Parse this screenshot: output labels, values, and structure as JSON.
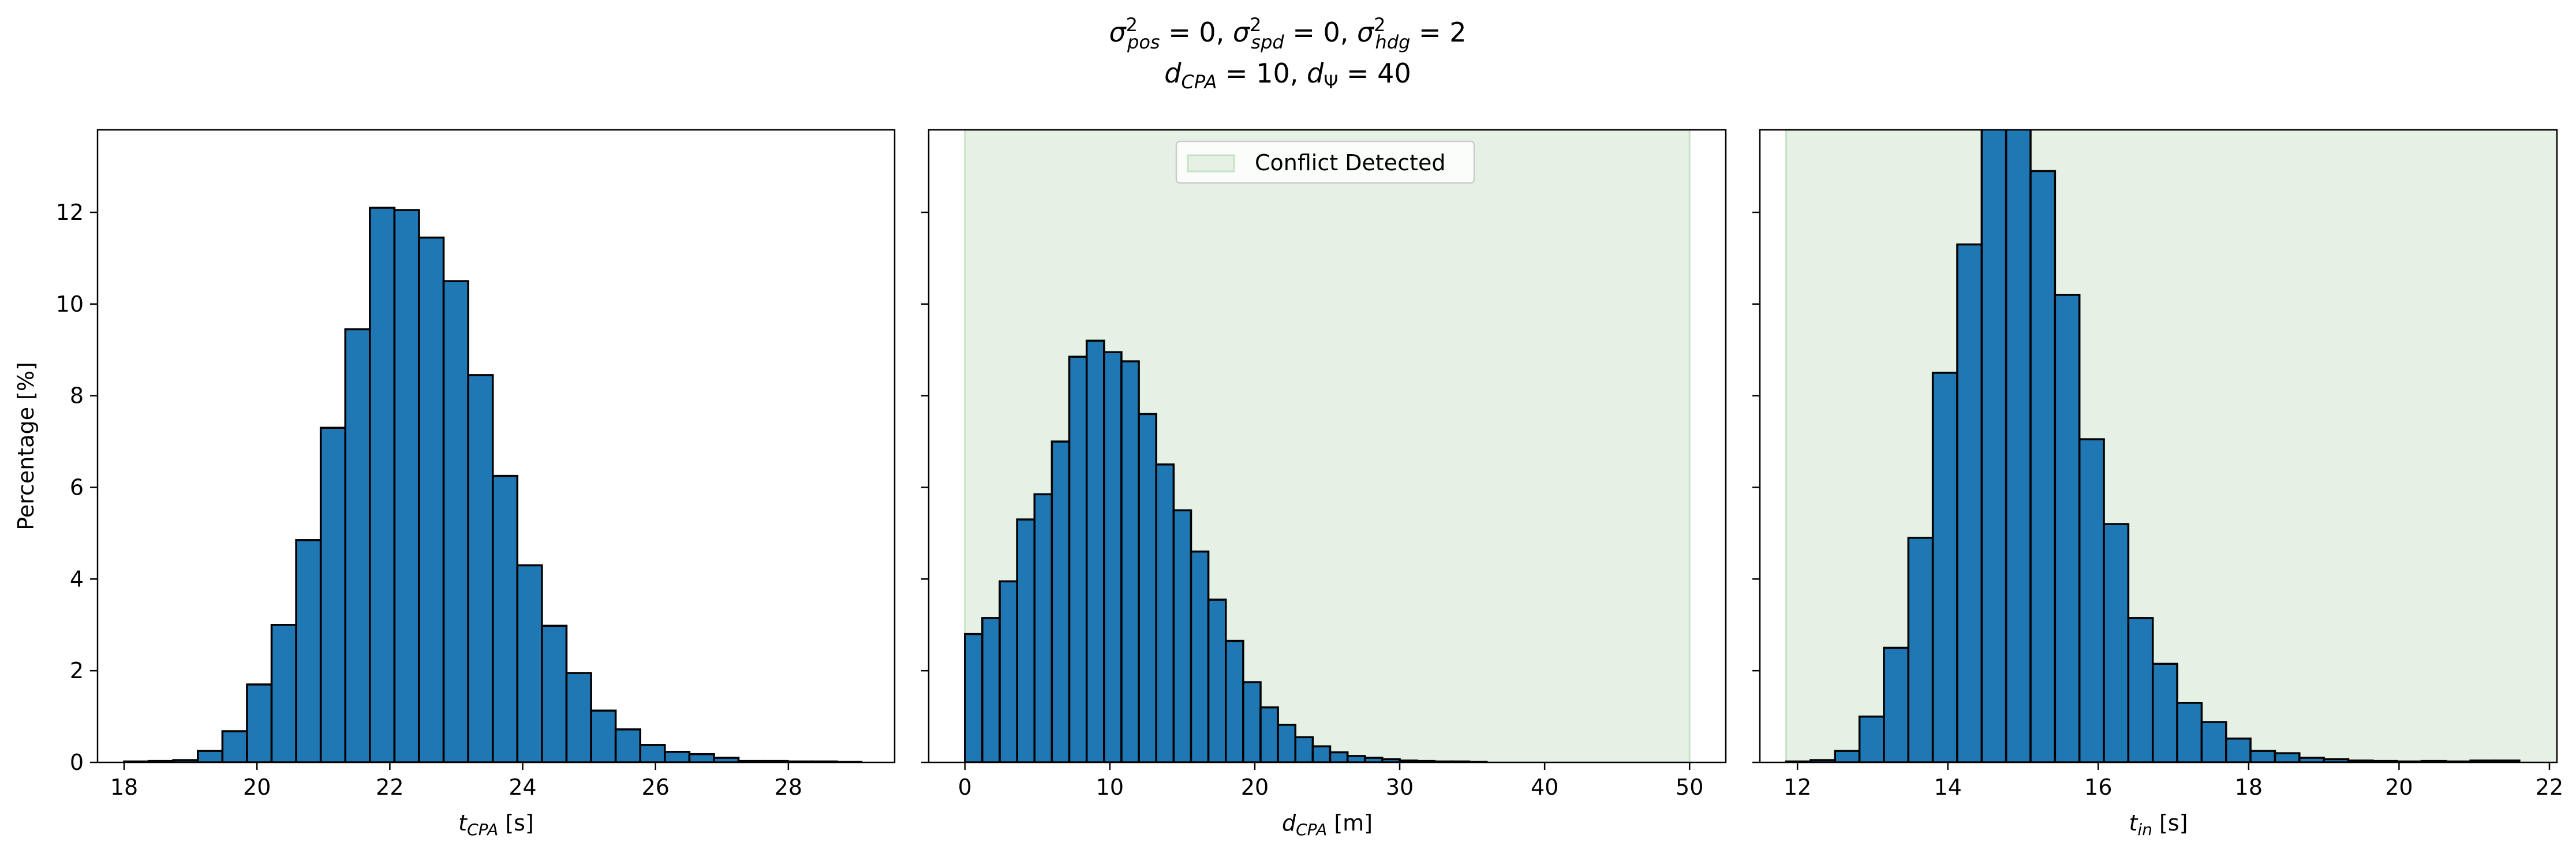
{
  "figure": {
    "title_line1": "σ²pos = 0, σ²spd = 0, σ²hdg = 2",
    "title_line2": "dCPA = 10, dΨ = 40"
  },
  "colors": {
    "bar_fill": "#1f77b4",
    "bar_edge": "#000000",
    "shade": "#e4f1e4",
    "shade_edge": "#c6e2c6"
  },
  "chart_data": [
    {
      "type": "bar",
      "name": "tcpa",
      "xlabel": "t_CPA [s]",
      "xlabel_parts": [
        "t",
        "CPA",
        " [s]"
      ],
      "ylabel": "Percentage [%]",
      "xlim": [
        17.6,
        29.6
      ],
      "ylim": [
        0,
        13.8
      ],
      "xticks": [
        18,
        20,
        22,
        24,
        26,
        28
      ],
      "yticks": [
        0,
        2,
        4,
        6,
        8,
        10,
        12
      ],
      "bin_start": 18.0,
      "bin_width": 0.37,
      "values": [
        0.02,
        0.03,
        0.05,
        0.25,
        0.68,
        1.7,
        3.0,
        4.85,
        7.3,
        9.45,
        12.1,
        12.05,
        11.45,
        10.5,
        8.45,
        6.25,
        4.3,
        2.98,
        1.95,
        1.13,
        0.72,
        0.38,
        0.23,
        0.18,
        0.1,
        0.03,
        0.03,
        0.02,
        0.02,
        0.01
      ]
    },
    {
      "type": "bar",
      "name": "dcpa",
      "xlabel": "d_CPA [m]",
      "xlabel_parts": [
        "d",
        "CPA",
        " [m]"
      ],
      "xlim": [
        -2.5,
        52.5
      ],
      "ylim": [
        0,
        13.8
      ],
      "xticks": [
        0,
        10,
        20,
        30,
        40,
        50
      ],
      "yticks": [
        0,
        2,
        4,
        6,
        8,
        10,
        12
      ],
      "shade_range": [
        0,
        50
      ],
      "legend": {
        "label": "Conflict Detected",
        "placement": "upper center"
      },
      "bin_start": 0.0,
      "bin_width": 1.2,
      "values": [
        2.8,
        3.15,
        3.95,
        5.3,
        5.85,
        7.0,
        8.85,
        9.2,
        8.95,
        8.75,
        7.6,
        6.5,
        5.5,
        4.6,
        3.55,
        2.65,
        1.75,
        1.2,
        0.82,
        0.55,
        0.35,
        0.22,
        0.14,
        0.1,
        0.07,
        0.04,
        0.03,
        0.02,
        0.02,
        0.01
      ]
    },
    {
      "type": "bar",
      "name": "tin",
      "xlabel": "t_in [s]",
      "xlabel_parts": [
        "t",
        "in",
        " [s]"
      ],
      "xlim": [
        11.5,
        22.1
      ],
      "ylim": [
        0,
        13.8
      ],
      "xticks": [
        12,
        14,
        16,
        18,
        20,
        22
      ],
      "yticks": [
        0,
        2,
        4,
        6,
        8,
        10,
        12
      ],
      "shade_range": [
        11.85,
        22.1
      ],
      "bin_start": 11.85,
      "bin_width": 0.325,
      "values": [
        0.02,
        0.05,
        0.25,
        1.0,
        2.5,
        4.9,
        8.5,
        11.3,
        14.1,
        13.95,
        12.9,
        10.2,
        7.05,
        5.2,
        3.15,
        2.15,
        1.3,
        0.88,
        0.52,
        0.25,
        0.2,
        0.1,
        0.07,
        0.04,
        0.03,
        0.02,
        0.03,
        0.02,
        0.04,
        0.04
      ]
    }
  ]
}
